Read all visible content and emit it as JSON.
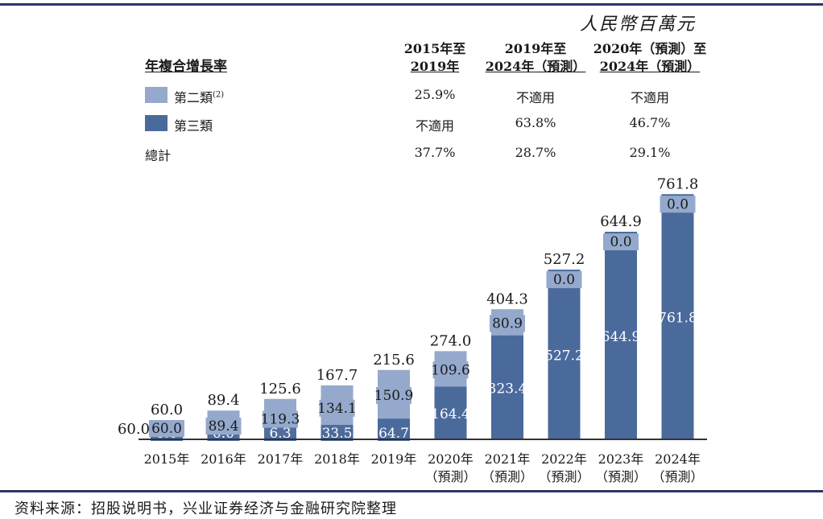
{
  "unit_label": "人民幣百萬元",
  "table": {
    "title": "年複合增長率",
    "columns": [
      {
        "line1": "2015年至",
        "line2": "2019年"
      },
      {
        "line1": "2019年至",
        "line2": "2024年（預測）"
      },
      {
        "line1": "2020年（預測）至",
        "line2": "2024年（預測）"
      }
    ],
    "rows": [
      {
        "label": "第二類",
        "superscript": "(2)",
        "values": [
          "25.9%",
          "不適用",
          "不適用"
        ]
      },
      {
        "label": "第三類",
        "superscript": "",
        "values": [
          "不適用",
          "63.8%",
          "46.7%"
        ]
      },
      {
        "label": "總計",
        "superscript": "",
        "values": [
          "37.7%",
          "28.7%",
          "29.1%"
        ]
      }
    ]
  },
  "colors": {
    "class2": "#94a9cc",
    "class3": "#4b6a9c",
    "axis": "#333333"
  },
  "chart_data": {
    "type": "bar",
    "stacked": true,
    "categories": [
      "2015年",
      "2016年",
      "2017年",
      "2018年",
      "2019年",
      "2020年",
      "2021年",
      "2022年",
      "2023年",
      "2024年"
    ],
    "category_sublabels": [
      "",
      "",
      "",
      "",
      "",
      "（預測）",
      "（預測）",
      "（預測）",
      "（預測）",
      "（預測）"
    ],
    "series": [
      {
        "name": "第三類",
        "values": [
          0.0,
          0.0,
          6.3,
          33.5,
          64.7,
          164.4,
          323.4,
          527.2,
          644.9,
          761.8
        ]
      },
      {
        "name": "第二類",
        "values": [
          60.0,
          89.4,
          119.3,
          134.1,
          150.9,
          109.6,
          80.9,
          0.0,
          0.0,
          0.0
        ]
      }
    ],
    "totals": [
      60.0,
      89.4,
      125.6,
      167.7,
      215.6,
      274.0,
      404.3,
      527.2,
      644.9,
      761.8
    ],
    "axis_value_label": "60.0",
    "ylim": [
      0,
      800
    ],
    "grid": false
  },
  "source": "资料来源：招股说明书，兴业证券经济与金融研究院整理"
}
